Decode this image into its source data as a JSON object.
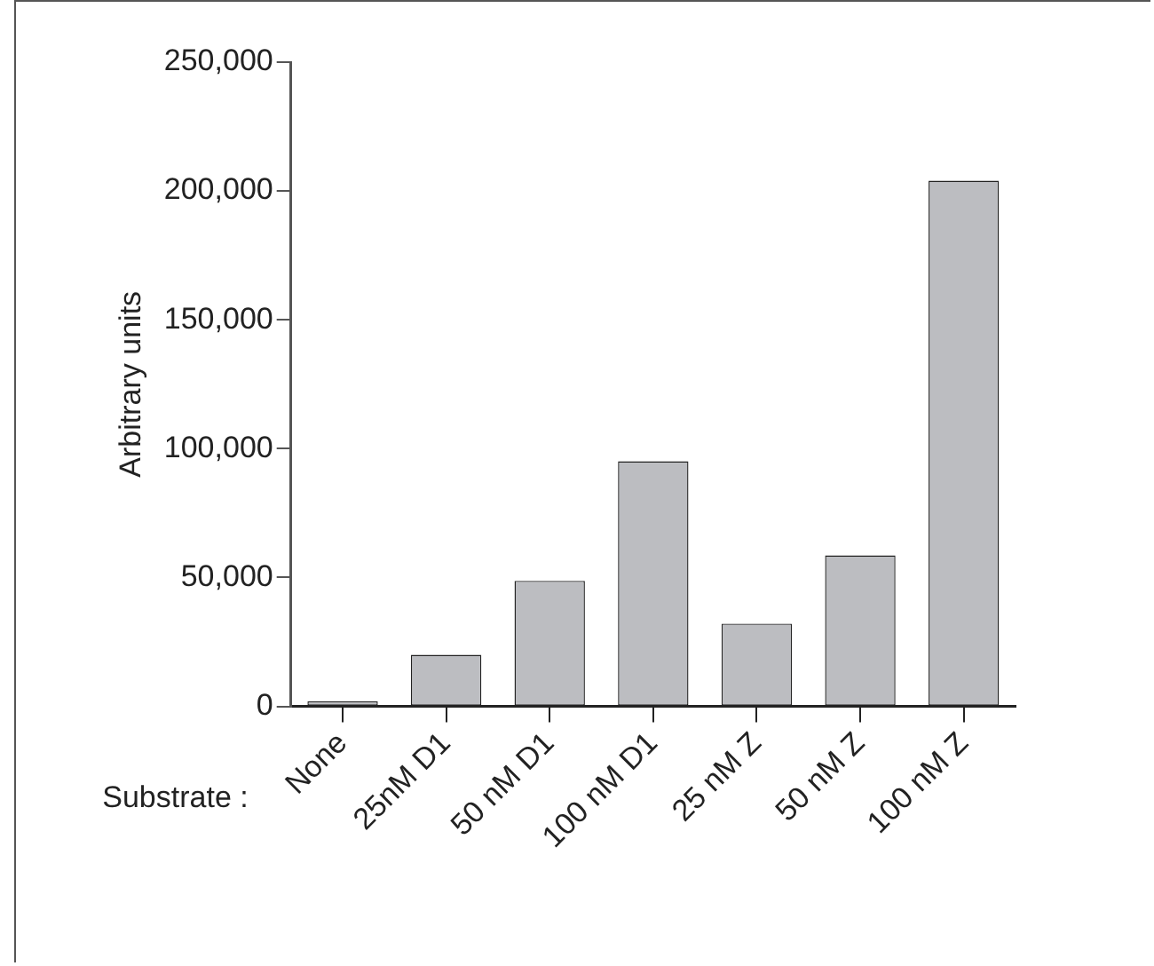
{
  "chart_data": {
    "type": "bar",
    "ylabel": "Arbitrary units",
    "xlabel": "Substrate :",
    "categories": [
      "None",
      "25nM D1",
      "50 nM D1",
      "100 nM D1",
      "25 nM Z",
      "50 nM Z",
      "100 nM Z"
    ],
    "values": [
      2000,
      20000,
      48700,
      95100,
      32100,
      58600,
      204000
    ],
    "color": "#bcbdc1",
    "ylim": [
      0,
      250000
    ],
    "yticks": [
      {
        "value": 0,
        "label": "0"
      },
      {
        "value": 50000,
        "label": "50,000"
      },
      {
        "value": 100000,
        "label": "100,000"
      },
      {
        "value": 150000,
        "label": "150,000"
      },
      {
        "value": 200000,
        "label": "200,000"
      },
      {
        "value": 250000,
        "label": "250,000"
      }
    ],
    "grid": false,
    "legend": false
  }
}
